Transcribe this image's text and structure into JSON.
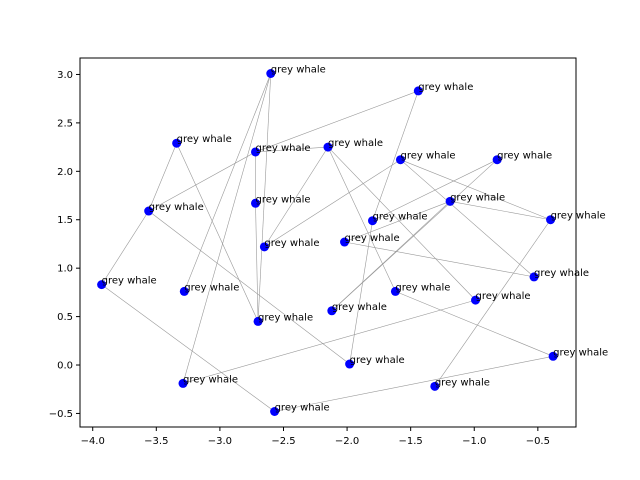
{
  "chart_data": {
    "type": "scatter",
    "title": "",
    "xlabel": "",
    "ylabel": "",
    "xlim": [
      -4.1,
      -0.2
    ],
    "ylim": [
      -0.64,
      3.17
    ],
    "xticks": [
      -4.0,
      -3.5,
      -3.0,
      -2.5,
      -2.0,
      -1.5,
      -1.0,
      -0.5
    ],
    "xtick_labels": [
      "−4.0",
      "−3.5",
      "−3.0",
      "−2.5",
      "−2.0",
      "−1.5",
      "−1.0",
      "−0.5"
    ],
    "yticks": [
      -0.5,
      0.0,
      0.5,
      1.0,
      1.5,
      2.0,
      2.5,
      3.0
    ],
    "ytick_labels": [
      "−0.5",
      "0.0",
      "0.5",
      "1.0",
      "1.5",
      "2.0",
      "2.5",
      "3.0"
    ],
    "grid": false,
    "point_color": "#0000ff",
    "edge_color": "#999999",
    "points": [
      {
        "x": -2.6,
        "y": 3.01,
        "label": "grey whale"
      },
      {
        "x": -1.44,
        "y": 2.83,
        "label": "grey whale"
      },
      {
        "x": -3.34,
        "y": 2.29,
        "label": "grey whale"
      },
      {
        "x": -2.72,
        "y": 2.2,
        "label": "grey whale"
      },
      {
        "x": -2.15,
        "y": 2.25,
        "label": "grey whale"
      },
      {
        "x": -1.58,
        "y": 2.12,
        "label": "grey whale"
      },
      {
        "x": -0.82,
        "y": 2.12,
        "label": "grey whale"
      },
      {
        "x": -3.56,
        "y": 1.59,
        "label": "grey whale"
      },
      {
        "x": -2.72,
        "y": 1.67,
        "label": "grey whale"
      },
      {
        "x": -1.19,
        "y": 1.69,
        "label": "grey whale"
      },
      {
        "x": -1.8,
        "y": 1.49,
        "label": "grey whale"
      },
      {
        "x": -0.4,
        "y": 1.5,
        "label": "grey whale"
      },
      {
        "x": -2.65,
        "y": 1.22,
        "label": "grey whale"
      },
      {
        "x": -2.02,
        "y": 1.27,
        "label": "grey whale"
      },
      {
        "x": -3.93,
        "y": 0.83,
        "label": "grey whale"
      },
      {
        "x": -3.28,
        "y": 0.76,
        "label": "grey whale"
      },
      {
        "x": -1.62,
        "y": 0.76,
        "label": "grey whale"
      },
      {
        "x": -0.53,
        "y": 0.91,
        "label": "grey whale"
      },
      {
        "x": -2.7,
        "y": 0.45,
        "label": "grey whale"
      },
      {
        "x": -2.12,
        "y": 0.56,
        "label": "grey whale"
      },
      {
        "x": -0.99,
        "y": 0.67,
        "label": "grey whale"
      },
      {
        "x": -1.98,
        "y": 0.01,
        "label": "grey whale"
      },
      {
        "x": -0.38,
        "y": 0.09,
        "label": "grey whale"
      },
      {
        "x": -3.29,
        "y": -0.19,
        "label": "grey whale"
      },
      {
        "x": -1.31,
        "y": -0.22,
        "label": "grey whale"
      },
      {
        "x": -2.57,
        "y": -0.48,
        "label": "grey whale"
      }
    ],
    "edges": [
      [
        2,
        7
      ],
      [
        7,
        14
      ],
      [
        14,
        25
      ],
      [
        25,
        22
      ],
      [
        2,
        18
      ],
      [
        18,
        0
      ],
      [
        0,
        15
      ],
      [
        0,
        23
      ],
      [
        3,
        8
      ],
      [
        8,
        18
      ],
      [
        3,
        7
      ],
      [
        3,
        1
      ],
      [
        1,
        10
      ],
      [
        10,
        21
      ],
      [
        21,
        7
      ],
      [
        12,
        4
      ],
      [
        4,
        16
      ],
      [
        16,
        22
      ],
      [
        4,
        3
      ],
      [
        4,
        20
      ],
      [
        20,
        23
      ],
      [
        12,
        5
      ],
      [
        5,
        11
      ],
      [
        11,
        24
      ],
      [
        9,
        13
      ],
      [
        9,
        11
      ],
      [
        9,
        19
      ],
      [
        19,
        6
      ],
      [
        13,
        17
      ],
      [
        5,
        17
      ],
      [
        10,
        6
      ]
    ]
  }
}
